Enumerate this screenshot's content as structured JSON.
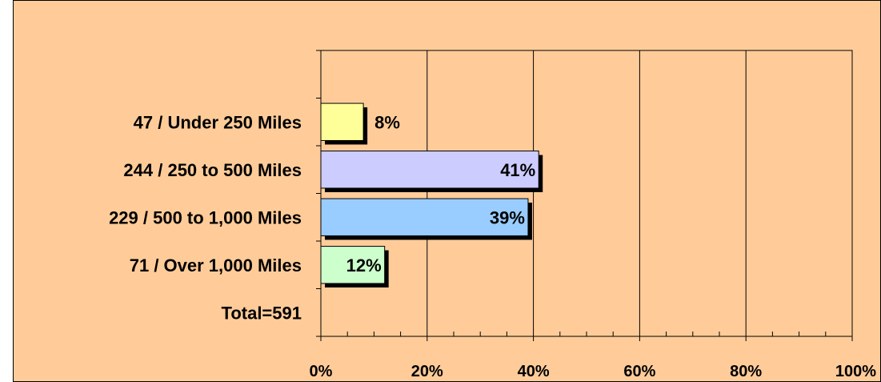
{
  "chart_data": {
    "type": "bar",
    "orientation": "horizontal",
    "categories": [
      "",
      "47 / Under 250 Miles",
      "244 / 250 to 500 Miles",
      "229 / 500 to 1,000 Miles",
      "71 / Over 1,000 Miles",
      "Total=591"
    ],
    "values": [
      null,
      8,
      41,
      39,
      12,
      null
    ],
    "data_labels": [
      "",
      "8%",
      "41%",
      "39%",
      "12%",
      ""
    ],
    "bar_colors": [
      "",
      "#ffff99",
      "#ccccff",
      "#99ccff",
      "#ccffcc",
      ""
    ],
    "label_position": [
      "",
      "outside",
      "inside",
      "inside",
      "inside",
      ""
    ],
    "xlim": [
      0,
      100
    ],
    "x_ticks": [
      0,
      20,
      40,
      60,
      80,
      100
    ],
    "x_tick_labels": [
      "0%",
      "20%",
      "40%",
      "60%",
      "80%",
      "100%"
    ],
    "grid": "vertical",
    "legend": "none",
    "background_color": "#ffcc99",
    "title": "",
    "xlabel": "",
    "ylabel": ""
  }
}
